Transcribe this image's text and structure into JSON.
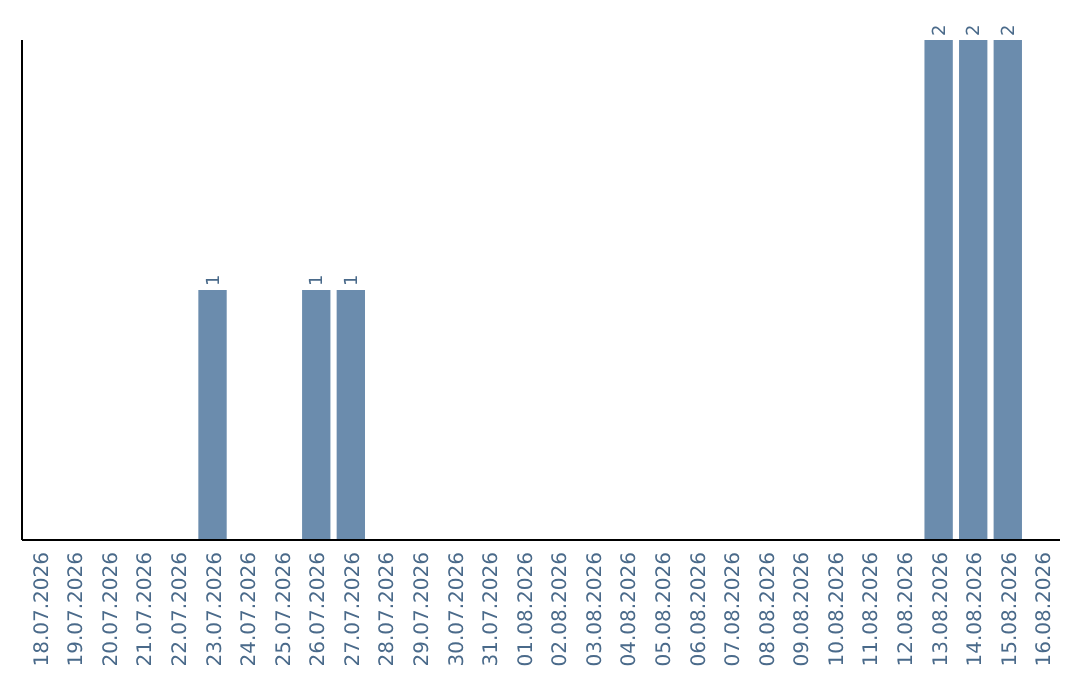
{
  "chart_data": {
    "type": "bar",
    "categories": [
      "18.07.2026",
      "19.07.2026",
      "20.07.2026",
      "21.07.2026",
      "22.07.2026",
      "23.07.2026",
      "24.07.2026",
      "25.07.2026",
      "26.07.2026",
      "27.07.2026",
      "28.07.2026",
      "29.07.2026",
      "30.07.2026",
      "31.07.2026",
      "01.08.2026",
      "02.08.2026",
      "03.08.2026",
      "04.08.2026",
      "05.08.2026",
      "06.08.2026",
      "07.08.2026",
      "08.08.2026",
      "09.08.2026",
      "10.08.2026",
      "11.08.2026",
      "12.08.2026",
      "13.08.2026",
      "14.08.2026",
      "15.08.2026",
      "16.08.2026"
    ],
    "values": [
      0,
      0,
      0,
      0,
      0,
      1,
      0,
      0,
      1,
      1,
      0,
      0,
      0,
      0,
      0,
      0,
      0,
      0,
      0,
      0,
      0,
      0,
      0,
      0,
      0,
      0,
      2,
      2,
      2,
      0
    ],
    "value_labels": [
      null,
      null,
      null,
      null,
      null,
      "1",
      null,
      null,
      "1",
      "1",
      null,
      null,
      null,
      null,
      null,
      null,
      null,
      null,
      null,
      null,
      null,
      null,
      null,
      null,
      null,
      null,
      "2",
      "2",
      "2",
      null
    ],
    "color": "#6b8cad",
    "ylim": [
      0,
      2
    ],
    "tick_labels": "x"
  }
}
